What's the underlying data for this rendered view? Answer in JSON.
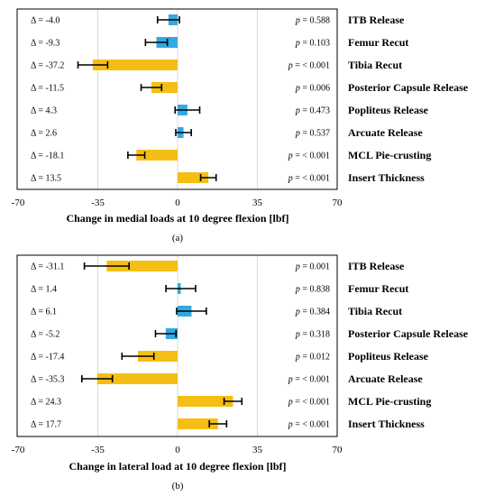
{
  "figure": {
    "colors": {
      "positive": "#31A9E1",
      "negative": "#F5BE14",
      "grid": "#D9D9D9",
      "frame": "#000000",
      "errorbar": "#000000"
    },
    "delta_prefix": "Δ = ",
    "p_prefix": "p",
    "p_separator": " = "
  },
  "chart_data": [
    {
      "type": "bar",
      "orientation": "horizontal",
      "panel_label": "(a)",
      "xlabel": "Change in medial loads at 10 degree flexion [lbf]",
      "xlim": [
        -70,
        70
      ],
      "xticks": [
        -70,
        -35,
        0,
        35,
        70
      ],
      "grid": "vertical",
      "categories": [
        "ITB Release",
        "Femur Recut",
        "Tibia Recut",
        "Posterior Capsule Release",
        "Popliteus Release",
        "Arcuate Release",
        "MCL Pie-crusting",
        "Insert Thickness"
      ],
      "deltas": [
        "-4.0",
        "-9.3",
        "-37.2",
        "-11.5",
        "4.3",
        "2.6",
        "-18.1",
        "13.5"
      ],
      "p_values": [
        "0.588",
        "0.103",
        "< 0.001",
        "0.006",
        "0.473",
        "0.537",
        "< 0.001",
        "< 0.001"
      ],
      "values": [
        -4.0,
        -9.3,
        -37.2,
        -11.5,
        4.3,
        2.6,
        -18.1,
        13.5
      ],
      "errors": [
        4.8,
        4.8,
        6.5,
        4.5,
        5.4,
        3.4,
        3.7,
        3.4
      ],
      "significant": [
        false,
        false,
        true,
        true,
        false,
        false,
        true,
        true
      ]
    },
    {
      "type": "bar",
      "orientation": "horizontal",
      "panel_label": "(b)",
      "xlabel": "Change in lateral load at 10 degree flexion [lbf]",
      "xlim": [
        -70,
        70
      ],
      "xticks": [
        -70,
        -35,
        0,
        35,
        70
      ],
      "grid": "vertical",
      "categories": [
        "ITB Release",
        "Femur Recut",
        "Tibia Recut",
        "Posterior Capsule Release",
        "Popliteus Release",
        "Arcuate Release",
        "MCL Pie-crusting",
        "Insert Thickness"
      ],
      "deltas": [
        "-31.1",
        "1.4",
        "6.1",
        "-5.2",
        "-17.4",
        "-35.3",
        "24.3",
        "17.7"
      ],
      "p_values": [
        "0.001",
        "0.838",
        "0.384",
        "0.318",
        "0.012",
        "< 0.001",
        "< 0.001",
        "< 0.001"
      ],
      "values": [
        -31.1,
        1.4,
        6.1,
        -5.2,
        -17.4,
        -35.3,
        24.3,
        17.7
      ],
      "errors": [
        9.8,
        6.5,
        6.5,
        4.5,
        7.0,
        6.7,
        3.9,
        3.8
      ],
      "significant": [
        true,
        false,
        false,
        false,
        true,
        true,
        true,
        true
      ]
    }
  ]
}
